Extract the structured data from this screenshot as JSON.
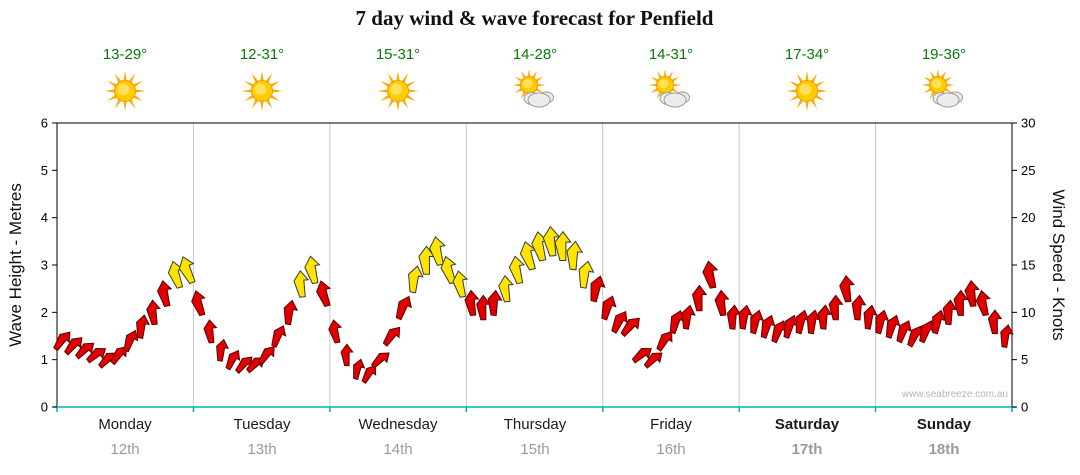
{
  "title": "7 day wind & wave forecast for Penfield",
  "watermark": "www.seabreeze.com.au",
  "axes": {
    "left_label": "Wave Height - Metres",
    "right_label": "Wind Speed - Knots",
    "left_ticks": [
      0,
      1,
      2,
      3,
      4,
      5,
      6
    ],
    "right_ticks": [
      0,
      5,
      10,
      15,
      20,
      25,
      30
    ],
    "left_range_metres": [
      0,
      6
    ],
    "right_range_knots": [
      0,
      30
    ]
  },
  "colors": {
    "arrow_red": "#e00000",
    "arrow_red_outline": "#5a0000",
    "arrow_yellow": "#ffe400",
    "arrow_yellow_outline": "#3a3a3a",
    "axis_teal": "#00b4b4",
    "temp_green": "#0a7a0a",
    "date_gray": "#9a9a9a",
    "grid_gray": "#c8c8c8"
  },
  "days": [
    {
      "name": "Monday",
      "date": "12th",
      "temps": "13-29°",
      "icon": "sunny",
      "weekend": false
    },
    {
      "name": "Tuesday",
      "date": "13th",
      "temps": "12-31°",
      "icon": "sunny",
      "weekend": false
    },
    {
      "name": "Wednesday",
      "date": "14th",
      "temps": "15-31°",
      "icon": "sunny",
      "weekend": false
    },
    {
      "name": "Thursday",
      "date": "15th",
      "temps": "14-28°",
      "icon": "partly-cloudy",
      "weekend": false
    },
    {
      "name": "Friday",
      "date": "16th",
      "temps": "14-31°",
      "icon": "partly-cloudy",
      "weekend": false
    },
    {
      "name": "Saturday",
      "date": "17th",
      "temps": "17-34°",
      "icon": "sunny",
      "weekend": true
    },
    {
      "name": "Sunday",
      "date": "18th",
      "temps": "19-36°",
      "icon": "partly-cloudy",
      "weekend": true
    }
  ],
  "chart_data": {
    "type": "scatter",
    "subtype": "wind-arrow-forecast",
    "title": "7 day wind & wave forecast for Penfield",
    "x_days": [
      "Monday 12th",
      "Tuesday 13th",
      "Wednesday 14th",
      "Thursday 15th",
      "Friday 16th",
      "Saturday 17th",
      "Sunday 18th"
    ],
    "points_per_day": 12,
    "y_left_label": "Wave Height - Metres",
    "y_left_range": [
      0,
      6
    ],
    "y_right_label": "Wind Speed - Knots",
    "y_right_range": [
      0,
      30
    ],
    "units": "knots",
    "point_format": [
      "wind_speed_knots",
      "direction_deg_from_up",
      "color"
    ],
    "arrow_colors_legend": {
      "r": "red",
      "y": "yellow"
    },
    "grid": "vertical-day-separators",
    "series": [
      {
        "day": "Monday",
        "points": [
          [
            7,
            40,
            "r"
          ],
          [
            6.5,
            45,
            "r"
          ],
          [
            6,
            50,
            "r"
          ],
          [
            5.5,
            55,
            "r"
          ],
          [
            5,
            50,
            "r"
          ],
          [
            5.5,
            40,
            "r"
          ],
          [
            7,
            25,
            "r"
          ],
          [
            8.5,
            10,
            "r"
          ],
          [
            10,
            355,
            "r"
          ],
          [
            12,
            350,
            "r"
          ],
          [
            14,
            345,
            "y"
          ],
          [
            14.5,
            340,
            "y"
          ]
        ]
      },
      {
        "day": "Tuesday",
        "points": [
          [
            11,
            345,
            "r"
          ],
          [
            8,
            355,
            "r"
          ],
          [
            6,
            10,
            "r"
          ],
          [
            5,
            30,
            "r"
          ],
          [
            4.5,
            45,
            "r"
          ],
          [
            4.5,
            50,
            "r"
          ],
          [
            5.5,
            40,
            "r"
          ],
          [
            7.5,
            25,
            "r"
          ],
          [
            10,
            10,
            "r"
          ],
          [
            13,
            355,
            "y"
          ],
          [
            14.5,
            350,
            "y"
          ],
          [
            12,
            345,
            "r"
          ]
        ]
      },
      {
        "day": "Wednesday",
        "points": [
          [
            8,
            350,
            "r"
          ],
          [
            5.5,
            0,
            "r"
          ],
          [
            4,
            15,
            "r"
          ],
          [
            3.5,
            35,
            "r"
          ],
          [
            5,
            50,
            "r"
          ],
          [
            7.5,
            40,
            "r"
          ],
          [
            10.5,
            25,
            "r"
          ],
          [
            13.5,
            10,
            "y"
          ],
          [
            15.5,
            0,
            "y"
          ],
          [
            16.5,
            350,
            "y"
          ],
          [
            14.5,
            345,
            "y"
          ],
          [
            13,
            350,
            "y"
          ]
        ]
      },
      {
        "day": "Thursday",
        "points": [
          [
            11,
            355,
            "r"
          ],
          [
            10.5,
            0,
            "r"
          ],
          [
            11,
            5,
            "r"
          ],
          [
            12.5,
            355,
            "y"
          ],
          [
            14.5,
            350,
            "y"
          ],
          [
            16,
            345,
            "y"
          ],
          [
            17,
            350,
            "y"
          ],
          [
            17.5,
            355,
            "y"
          ],
          [
            17,
            0,
            "y"
          ],
          [
            16,
            5,
            "y"
          ],
          [
            14,
            10,
            "y"
          ],
          [
            12.5,
            15,
            "r"
          ]
        ]
      },
      {
        "day": "Friday",
        "points": [
          [
            10.5,
            20,
            "r"
          ],
          [
            9,
            30,
            "r"
          ],
          [
            8.5,
            45,
            "r"
          ],
          [
            5.5,
            55,
            "r"
          ],
          [
            5,
            50,
            "r"
          ],
          [
            7,
            35,
            "r"
          ],
          [
            9,
            20,
            "r"
          ],
          [
            9.5,
            10,
            "r"
          ],
          [
            11.5,
            0,
            "r"
          ],
          [
            14,
            350,
            "r"
          ],
          [
            11,
            355,
            "r"
          ],
          [
            9.5,
            5,
            "r"
          ]
        ]
      },
      {
        "day": "Saturday",
        "points": [
          [
            9.5,
            10,
            "r"
          ],
          [
            9,
            15,
            "r"
          ],
          [
            8.5,
            20,
            "r"
          ],
          [
            8,
            25,
            "r"
          ],
          [
            8.5,
            20,
            "r"
          ],
          [
            9,
            15,
            "r"
          ],
          [
            9,
            10,
            "r"
          ],
          [
            9.5,
            5,
            "r"
          ],
          [
            10.5,
            0,
            "r"
          ],
          [
            12.5,
            355,
            "r"
          ],
          [
            10.5,
            5,
            "r"
          ],
          [
            9.5,
            10,
            "r"
          ]
        ]
      },
      {
        "day": "Sunday",
        "points": [
          [
            9,
            15,
            "r"
          ],
          [
            8.5,
            20,
            "r"
          ],
          [
            8,
            25,
            "r"
          ],
          [
            7.5,
            30,
            "r"
          ],
          [
            8,
            25,
            "r"
          ],
          [
            9,
            15,
            "r"
          ],
          [
            10,
            5,
            "r"
          ],
          [
            11,
            0,
            "r"
          ],
          [
            12,
            355,
            "r"
          ],
          [
            11,
            350,
            "r"
          ],
          [
            9,
            0,
            "r"
          ],
          [
            7.5,
            10,
            "r"
          ]
        ]
      }
    ]
  }
}
